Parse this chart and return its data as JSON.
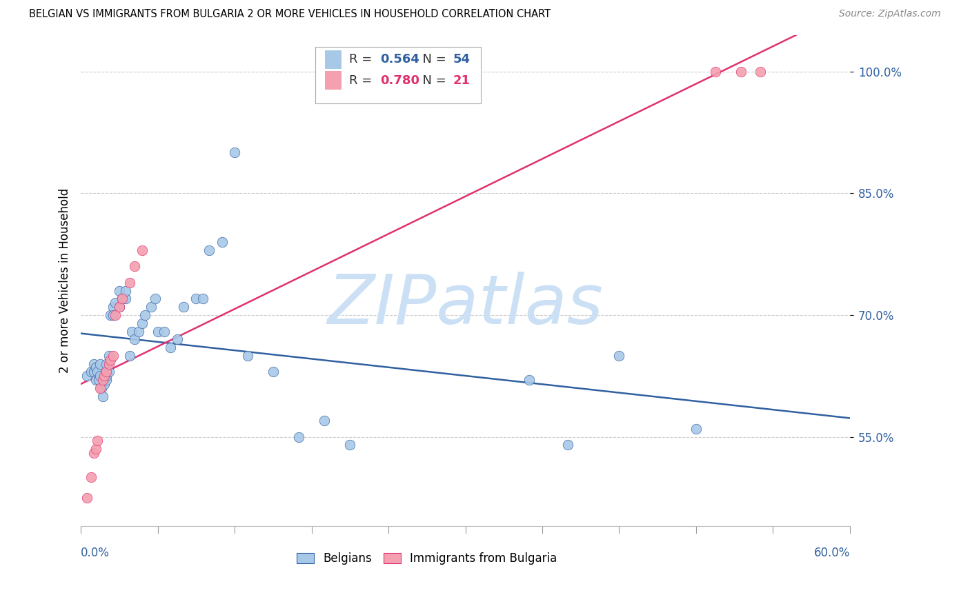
{
  "title": "BELGIAN VS IMMIGRANTS FROM BULGARIA 2 OR MORE VEHICLES IN HOUSEHOLD CORRELATION CHART",
  "source": "Source: ZipAtlas.com",
  "ylabel": "2 or more Vehicles in Household",
  "ytick_labels": [
    "55.0%",
    "70.0%",
    "85.0%",
    "100.0%"
  ],
  "ytick_values": [
    0.55,
    0.7,
    0.85,
    1.0
  ],
  "xmin": 0.0,
  "xmax": 0.6,
  "ymin": 0.44,
  "ymax": 1.045,
  "blue_R": "0.564",
  "blue_N": "54",
  "pink_R": "0.780",
  "pink_N": "21",
  "blue_color": "#a8c8e8",
  "pink_color": "#f4a0b0",
  "blue_line_color": "#3060a0",
  "pink_line_color": "#e03070",
  "watermark_color": "#cce0f5",
  "legend_label_blue": "Belgians",
  "legend_label_pink": "Immigrants from Bulgaria",
  "blue_x": [
    0.005,
    0.008,
    0.01,
    0.01,
    0.012,
    0.012,
    0.013,
    0.014,
    0.015,
    0.015,
    0.016,
    0.017,
    0.018,
    0.02,
    0.02,
    0.02,
    0.022,
    0.022,
    0.023,
    0.025,
    0.025,
    0.027,
    0.03,
    0.03,
    0.032,
    0.035,
    0.035,
    0.038,
    0.04,
    0.042,
    0.045,
    0.048,
    0.05,
    0.055,
    0.058,
    0.06,
    0.065,
    0.07,
    0.075,
    0.08,
    0.09,
    0.095,
    0.1,
    0.11,
    0.12,
    0.13,
    0.15,
    0.17,
    0.19,
    0.21,
    0.35,
    0.38,
    0.42,
    0.48
  ],
  "blue_y": [
    0.625,
    0.63,
    0.63,
    0.64,
    0.62,
    0.635,
    0.63,
    0.62,
    0.625,
    0.64,
    0.61,
    0.6,
    0.615,
    0.62,
    0.625,
    0.64,
    0.63,
    0.65,
    0.7,
    0.71,
    0.7,
    0.715,
    0.71,
    0.73,
    0.72,
    0.72,
    0.73,
    0.65,
    0.68,
    0.67,
    0.68,
    0.69,
    0.7,
    0.71,
    0.72,
    0.68,
    0.68,
    0.66,
    0.67,
    0.71,
    0.72,
    0.72,
    0.78,
    0.79,
    0.9,
    0.65,
    0.63,
    0.55,
    0.57,
    0.54,
    0.62,
    0.54,
    0.65,
    0.56
  ],
  "pink_x": [
    0.005,
    0.008,
    0.01,
    0.012,
    0.013,
    0.015,
    0.017,
    0.018,
    0.02,
    0.022,
    0.023,
    0.025,
    0.027,
    0.03,
    0.032,
    0.038,
    0.042,
    0.048,
    0.495,
    0.515,
    0.53
  ],
  "pink_y": [
    0.475,
    0.5,
    0.53,
    0.535,
    0.545,
    0.61,
    0.62,
    0.625,
    0.63,
    0.64,
    0.645,
    0.65,
    0.7,
    0.71,
    0.72,
    0.74,
    0.76,
    0.78,
    1.0,
    1.0,
    1.0
  ]
}
